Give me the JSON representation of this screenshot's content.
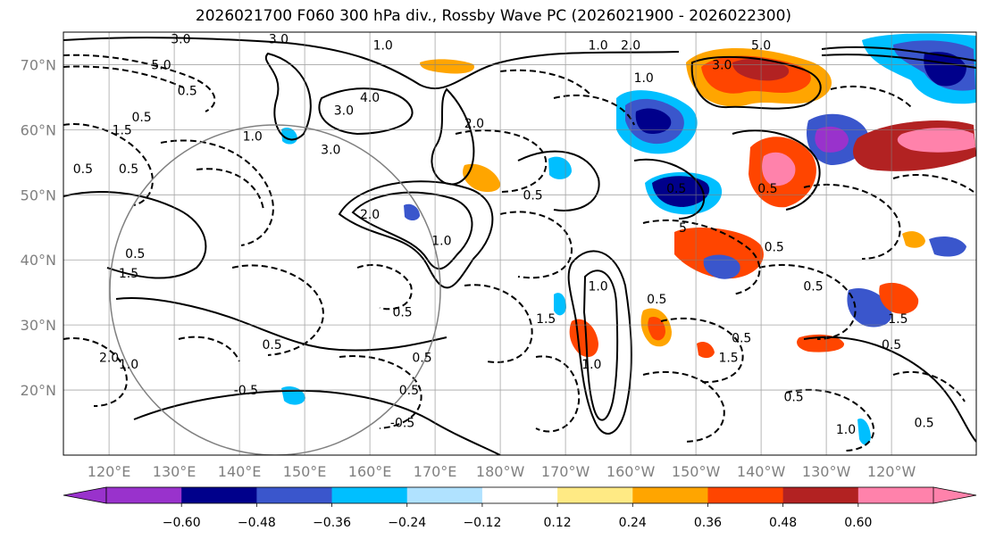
{
  "title": "2026021700 F060 300 hPa div., Rossby Wave PC (2026021900 - 2026022300)",
  "map": {
    "lat_labels": [
      {
        "lat": 70,
        "label": "70°N"
      },
      {
        "lat": 60,
        "label": "60°N"
      },
      {
        "lat": 50,
        "label": "50°N"
      },
      {
        "lat": 40,
        "label": "40°N"
      },
      {
        "lat": 30,
        "label": "30°N"
      },
      {
        "lat": 20,
        "label": "20°N"
      }
    ],
    "lon_labels": [
      {
        "lon": 120,
        "label": "120°E"
      },
      {
        "lon": 130,
        "label": "130°E"
      },
      {
        "lon": 140,
        "label": "140°E"
      },
      {
        "lon": 150,
        "label": "150°E"
      },
      {
        "lon": 160,
        "label": "160°E"
      },
      {
        "lon": 170,
        "label": "170°E"
      },
      {
        "lon": 180,
        "label": "180°W"
      },
      {
        "lon": 190,
        "label": "170°W"
      },
      {
        "lon": 200,
        "label": "160°W"
      },
      {
        "lon": 210,
        "label": "150°W"
      },
      {
        "lon": 220,
        "label": "140°W"
      },
      {
        "lon": 230,
        "label": "130°W"
      },
      {
        "lon": 240,
        "label": "120°W"
      }
    ],
    "extent": {
      "lon_min": 113,
      "lon_max": 253,
      "lat_min": 10,
      "lat_max": 75
    },
    "contour_labels": [
      {
        "lon": 131,
        "lat": 74,
        "text": "3.0"
      },
      {
        "lon": 146,
        "lat": 74,
        "text": "3.0"
      },
      {
        "lon": 162,
        "lat": 73,
        "text": "1.0"
      },
      {
        "lon": 195,
        "lat": 73,
        "text": "1.0"
      },
      {
        "lon": 200,
        "lat": 73,
        "text": "2.0"
      },
      {
        "lon": 220,
        "lat": 73,
        "text": "5.0"
      },
      {
        "lon": 128,
        "lat": 70,
        "text": "5.0"
      },
      {
        "lon": 202,
        "lat": 68,
        "text": "1.0"
      },
      {
        "lon": 214,
        "lat": 70,
        "text": "3.0"
      },
      {
        "lon": 132,
        "lat": 66,
        "text": "0.5"
      },
      {
        "lon": 160,
        "lat": 65,
        "text": "4.0"
      },
      {
        "lon": 156,
        "lat": 63,
        "text": "3.0"
      },
      {
        "lon": 125,
        "lat": 62,
        "text": "0.5"
      },
      {
        "lon": 122,
        "lat": 60,
        "text": "1.5"
      },
      {
        "lon": 142,
        "lat": 59,
        "text": "1.0"
      },
      {
        "lon": 154,
        "lat": 57,
        "text": "3.0"
      },
      {
        "lon": 176,
        "lat": 61,
        "text": "2.0"
      },
      {
        "lon": 116,
        "lat": 54,
        "text": "0.5"
      },
      {
        "lon": 123,
        "lat": 54,
        "text": "0.5"
      },
      {
        "lon": 185,
        "lat": 50,
        "text": "0.5"
      },
      {
        "lon": 207,
        "lat": 51,
        "text": "0.5"
      },
      {
        "lon": 221,
        "lat": 51,
        "text": "0.5"
      },
      {
        "lon": 160,
        "lat": 47,
        "text": "2.0"
      },
      {
        "lon": 171,
        "lat": 43,
        "text": "1.0"
      },
      {
        "lon": 124,
        "lat": 41,
        "text": "0.5"
      },
      {
        "lon": 208,
        "lat": 45,
        "text": "5"
      },
      {
        "lon": 222,
        "lat": 42,
        "text": "0.5"
      },
      {
        "lon": 123,
        "lat": 38,
        "text": "1.5"
      },
      {
        "lon": 195,
        "lat": 36,
        "text": "1.0"
      },
      {
        "lon": 204,
        "lat": 34,
        "text": "0.5"
      },
      {
        "lon": 228,
        "lat": 36,
        "text": "0.5"
      },
      {
        "lon": 165,
        "lat": 32,
        "text": "0.5"
      },
      {
        "lon": 187,
        "lat": 31,
        "text": "1.5"
      },
      {
        "lon": 241,
        "lat": 31,
        "text": "1.5"
      },
      {
        "lon": 217,
        "lat": 28,
        "text": "0.5"
      },
      {
        "lon": 120,
        "lat": 25,
        "text": "2.0"
      },
      {
        "lon": 123,
        "lat": 24,
        "text": "1.0"
      },
      {
        "lon": 145,
        "lat": 27,
        "text": "0.5"
      },
      {
        "lon": 168,
        "lat": 25,
        "text": "0.5"
      },
      {
        "lon": 166,
        "lat": 20,
        "text": "0.5"
      },
      {
        "lon": 194,
        "lat": 24,
        "text": "1.0"
      },
      {
        "lon": 215,
        "lat": 25,
        "text": "1.5"
      },
      {
        "lon": 240,
        "lat": 27,
        "text": "0.5"
      },
      {
        "lon": 141,
        "lat": 20,
        "text": "-0.5"
      },
      {
        "lon": 165,
        "lat": 15,
        "text": "-0.5"
      },
      {
        "lon": 225,
        "lat": 19,
        "text": "0.5"
      },
      {
        "lon": 233,
        "lat": 14,
        "text": "1.0"
      },
      {
        "lon": 245,
        "lat": 15,
        "text": "0.5"
      }
    ]
  },
  "colorbar": {
    "colors": [
      "#9932cc",
      "#00008b",
      "#3a56cc",
      "#00bfff",
      "#b0e2ff",
      "#ffffff",
      "#ffea84",
      "#ffa500",
      "#ff4500",
      "#b22222",
      "#ff82ab"
    ],
    "under_color": "#9932cc",
    "over_color": "#ff82ab",
    "ticks": [
      "−0.60",
      "−0.48",
      "−0.36",
      "−0.24",
      "−0.12",
      "0.12",
      "0.24",
      "0.36",
      "0.48",
      "0.60"
    ]
  }
}
